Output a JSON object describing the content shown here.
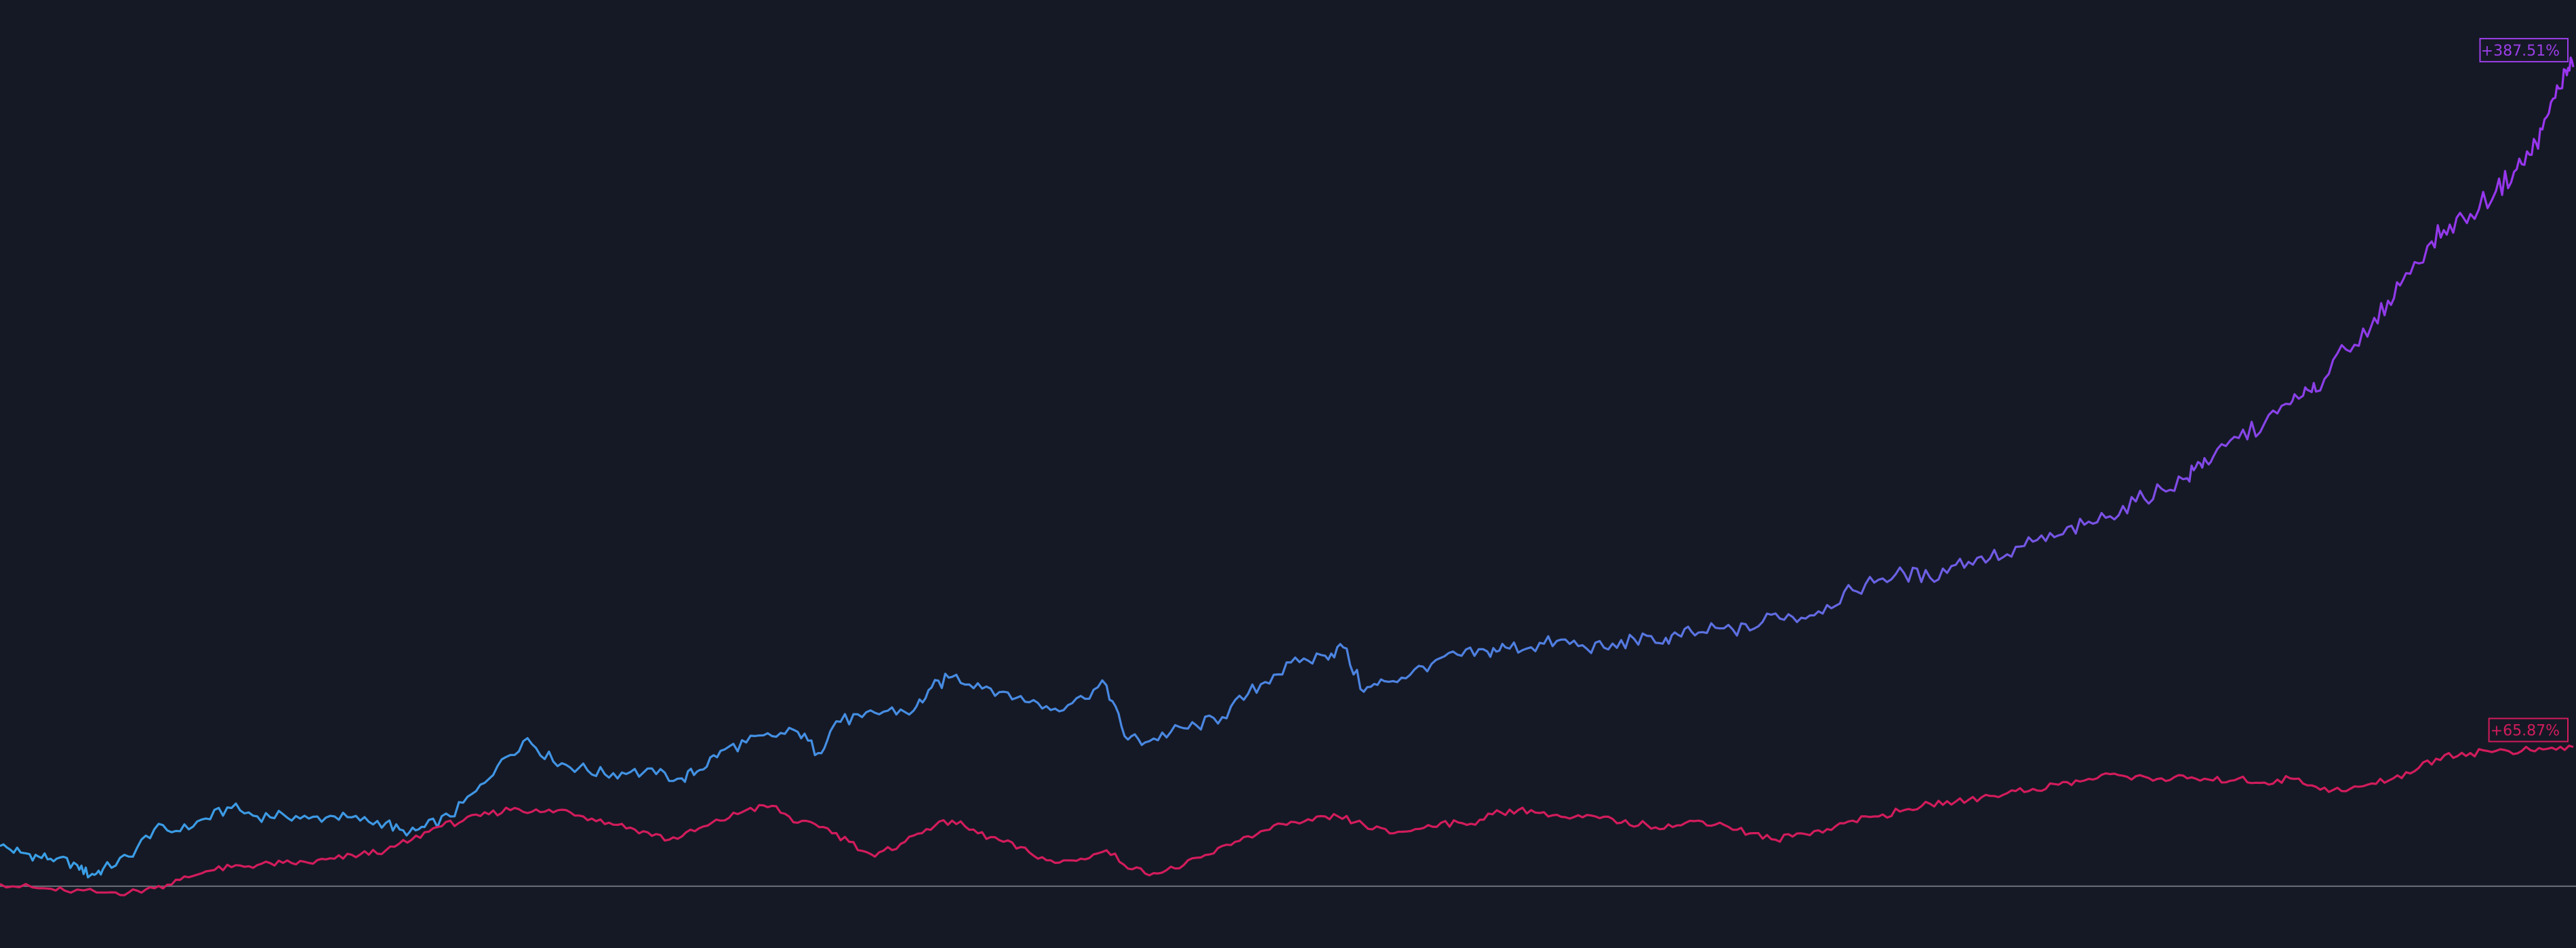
{
  "chart_data": {
    "type": "line",
    "title": "",
    "xlabel": "",
    "ylabel": "",
    "grid": false,
    "legend": "none",
    "xlim": [
      0,
      1
    ],
    "ylim": [
      -10,
      400
    ],
    "baseline": 0,
    "series": [
      {
        "end_label": "+387.51%",
        "gradient": [
          "#39a0e6",
          "#4f7fe0",
          "#8f3be8",
          "#9a35f0"
        ],
        "label_color": "#9b3ee8",
        "points": [
          [
            0.0,
            19
          ],
          [
            0.008,
            16
          ],
          [
            0.015,
            14
          ],
          [
            0.022,
            13
          ],
          [
            0.03,
            10
          ],
          [
            0.035,
            5
          ],
          [
            0.04,
            8
          ],
          [
            0.05,
            14
          ],
          [
            0.06,
            27
          ],
          [
            0.07,
            26
          ],
          [
            0.08,
            32
          ],
          [
            0.09,
            37
          ],
          [
            0.1,
            33
          ],
          [
            0.11,
            34
          ],
          [
            0.12,
            32
          ],
          [
            0.13,
            33
          ],
          [
            0.14,
            31
          ],
          [
            0.15,
            30
          ],
          [
            0.158,
            24
          ],
          [
            0.165,
            28
          ],
          [
            0.175,
            33
          ],
          [
            0.185,
            45
          ],
          [
            0.195,
            60
          ],
          [
            0.205,
            70
          ],
          [
            0.215,
            59
          ],
          [
            0.225,
            56
          ],
          [
            0.235,
            53
          ],
          [
            0.245,
            54
          ],
          [
            0.255,
            53
          ],
          [
            0.265,
            51
          ],
          [
            0.272,
            55
          ],
          [
            0.28,
            64
          ],
          [
            0.29,
            68
          ],
          [
            0.3,
            71
          ],
          [
            0.31,
            73
          ],
          [
            0.318,
            63
          ],
          [
            0.325,
            78
          ],
          [
            0.335,
            80
          ],
          [
            0.345,
            83
          ],
          [
            0.355,
            83
          ],
          [
            0.362,
            94
          ],
          [
            0.37,
            99
          ],
          [
            0.38,
            96
          ],
          [
            0.39,
            92
          ],
          [
            0.4,
            87
          ],
          [
            0.41,
            84
          ],
          [
            0.42,
            90
          ],
          [
            0.43,
            95
          ],
          [
            0.437,
            71
          ],
          [
            0.445,
            68
          ],
          [
            0.455,
            73
          ],
          [
            0.465,
            76
          ],
          [
            0.475,
            80
          ],
          [
            0.485,
            91
          ],
          [
            0.495,
            100
          ],
          [
            0.505,
            106
          ],
          [
            0.515,
            109
          ],
          [
            0.522,
            113
          ],
          [
            0.53,
            92
          ],
          [
            0.538,
            97
          ],
          [
            0.548,
            100
          ],
          [
            0.558,
            107
          ],
          [
            0.568,
            109
          ],
          [
            0.578,
            111
          ],
          [
            0.585,
            113
          ],
          [
            0.595,
            113
          ],
          [
            0.605,
            116
          ],
          [
            0.615,
            114
          ],
          [
            0.625,
            112
          ],
          [
            0.635,
            117
          ],
          [
            0.645,
            115
          ],
          [
            0.652,
            119
          ],
          [
            0.66,
            120
          ],
          [
            0.67,
            122
          ],
          [
            0.68,
            121
          ],
          [
            0.69,
            129
          ],
          [
            0.7,
            127
          ],
          [
            0.71,
            133
          ],
          [
            0.72,
            140
          ],
          [
            0.73,
            145
          ],
          [
            0.74,
            148
          ],
          [
            0.75,
            146
          ],
          [
            0.76,
            152
          ],
          [
            0.77,
            156
          ],
          [
            0.78,
            157
          ],
          [
            0.79,
            163
          ],
          [
            0.8,
            166
          ],
          [
            0.81,
            171
          ],
          [
            0.82,
            175
          ],
          [
            0.83,
            182
          ],
          [
            0.84,
            188
          ],
          [
            0.85,
            193
          ],
          [
            0.855,
            200
          ],
          [
            0.86,
            203
          ],
          [
            0.87,
            212
          ],
          [
            0.88,
            219
          ],
          [
            0.89,
            228
          ],
          [
            0.895,
            232
          ],
          [
            0.9,
            234
          ],
          [
            0.91,
            256
          ],
          [
            0.92,
            260
          ],
          [
            0.928,
            277
          ],
          [
            0.935,
            290
          ],
          [
            0.945,
            305
          ],
          [
            0.952,
            313
          ],
          [
            0.96,
            318
          ],
          [
            0.97,
            329
          ],
          [
            0.977,
            338
          ],
          [
            0.983,
            346
          ],
          [
            0.988,
            358
          ],
          [
            0.993,
            373
          ],
          [
            0.997,
            386
          ],
          [
            1.0,
            387.51
          ]
        ]
      },
      {
        "end_label": "+65.87%",
        "color": "#d21c5c",
        "label_color": "#d21c5c",
        "points": [
          [
            0.0,
            1
          ],
          [
            0.015,
            -1
          ],
          [
            0.025,
            -2
          ],
          [
            0.04,
            -3
          ],
          [
            0.05,
            -3
          ],
          [
            0.06,
            -1
          ],
          [
            0.07,
            3
          ],
          [
            0.08,
            7
          ],
          [
            0.09,
            9
          ],
          [
            0.1,
            10
          ],
          [
            0.11,
            11
          ],
          [
            0.12,
            11
          ],
          [
            0.13,
            13
          ],
          [
            0.14,
            15
          ],
          [
            0.15,
            17
          ],
          [
            0.16,
            22
          ],
          [
            0.17,
            28
          ],
          [
            0.18,
            31
          ],
          [
            0.19,
            34
          ],
          [
            0.2,
            37
          ],
          [
            0.21,
            35
          ],
          [
            0.22,
            36
          ],
          [
            0.23,
            32
          ],
          [
            0.24,
            29
          ],
          [
            0.25,
            26
          ],
          [
            0.26,
            22
          ],
          [
            0.27,
            26
          ],
          [
            0.28,
            31
          ],
          [
            0.29,
            36
          ],
          [
            0.3,
            38
          ],
          [
            0.31,
            30
          ],
          [
            0.32,
            28
          ],
          [
            0.33,
            21
          ],
          [
            0.34,
            14
          ],
          [
            0.35,
            20
          ],
          [
            0.36,
            27
          ],
          [
            0.37,
            31
          ],
          [
            0.38,
            25
          ],
          [
            0.39,
            21
          ],
          [
            0.4,
            16
          ],
          [
            0.41,
            11
          ],
          [
            0.42,
            13
          ],
          [
            0.43,
            17
          ],
          [
            0.44,
            8
          ],
          [
            0.45,
            6
          ],
          [
            0.46,
            10
          ],
          [
            0.47,
            15
          ],
          [
            0.48,
            21
          ],
          [
            0.49,
            26
          ],
          [
            0.5,
            29
          ],
          [
            0.51,
            31
          ],
          [
            0.52,
            33
          ],
          [
            0.53,
            29
          ],
          [
            0.54,
            25
          ],
          [
            0.55,
            27
          ],
          [
            0.56,
            30
          ],
          [
            0.57,
            29
          ],
          [
            0.58,
            34
          ],
          [
            0.59,
            36
          ],
          [
            0.6,
            35
          ],
          [
            0.61,
            32
          ],
          [
            0.62,
            33
          ],
          [
            0.63,
            30
          ],
          [
            0.64,
            29
          ],
          [
            0.65,
            28
          ],
          [
            0.66,
            31
          ],
          [
            0.67,
            29
          ],
          [
            0.68,
            25
          ],
          [
            0.69,
            22
          ],
          [
            0.7,
            25
          ],
          [
            0.71,
            27
          ],
          [
            0.72,
            31
          ],
          [
            0.73,
            33
          ],
          [
            0.74,
            36
          ],
          [
            0.75,
            39
          ],
          [
            0.76,
            40
          ],
          [
            0.77,
            42
          ],
          [
            0.78,
            44
          ],
          [
            0.79,
            46
          ],
          [
            0.8,
            48
          ],
          [
            0.81,
            50
          ],
          [
            0.82,
            53
          ],
          [
            0.83,
            52
          ],
          [
            0.84,
            51
          ],
          [
            0.85,
            51
          ],
          [
            0.86,
            50
          ],
          [
            0.87,
            51
          ],
          [
            0.88,
            49
          ],
          [
            0.89,
            51
          ],
          [
            0.9,
            47
          ],
          [
            0.91,
            45
          ],
          [
            0.92,
            48
          ],
          [
            0.93,
            51
          ],
          [
            0.94,
            56
          ],
          [
            0.95,
            62
          ],
          [
            0.96,
            63
          ],
          [
            0.97,
            64
          ],
          [
            0.98,
            64
          ],
          [
            0.99,
            65
          ],
          [
            1.0,
            65.87
          ]
        ]
      }
    ]
  },
  "colors": {
    "background": "#151925",
    "baseline": "#6b6f78"
  }
}
